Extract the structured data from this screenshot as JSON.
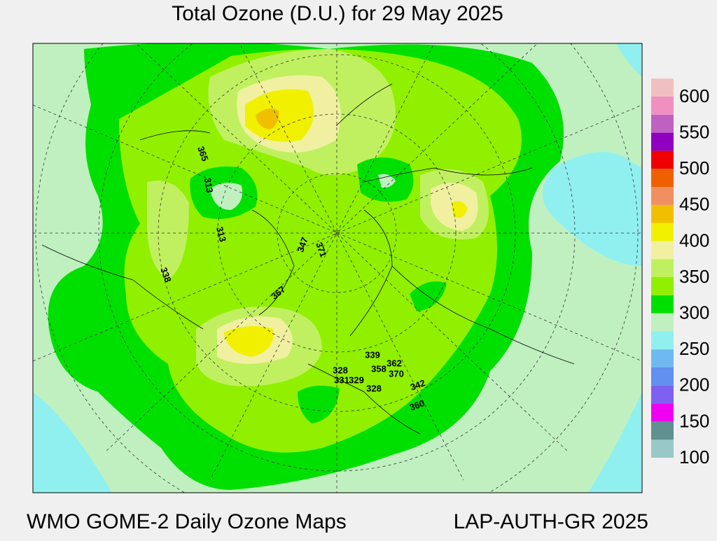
{
  "header": {
    "title": "Total Ozone (D.U.) for 29 May 2025"
  },
  "footer": {
    "left": "WMO GOME-2 Daily Ozone Maps",
    "right": "LAP-AUTH-GR 2025"
  },
  "legend": {
    "colors": [
      "#98c8c8",
      "#609090",
      "#f000f0",
      "#8060f0",
      "#6090f0",
      "#70b8f0",
      "#90f0f0",
      "#c0f0c0",
      "#00e000",
      "#90f000",
      "#c0f060",
      "#f0f0a0",
      "#f0f000",
      "#f0c000",
      "#f09060",
      "#f06000",
      "#f00000",
      "#9000c0",
      "#c060c0",
      "#f090c0",
      "#f0c0c0"
    ],
    "labels": [
      100,
      150,
      200,
      250,
      300,
      350,
      400,
      450,
      500,
      550,
      600
    ]
  },
  "stations": [
    365,
    313,
    313,
    338,
    347,
    371,
    367,
    339,
    328,
    331,
    329,
    358,
    362,
    370,
    328,
    342,
    360
  ]
}
